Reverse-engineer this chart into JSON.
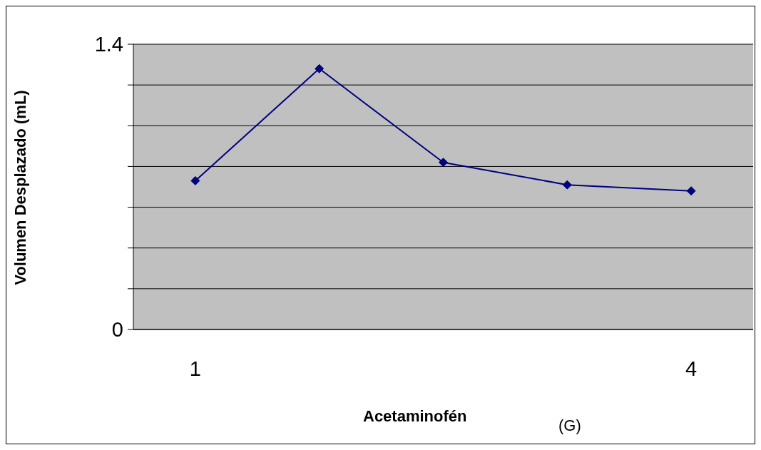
{
  "chart_data": {
    "type": "line",
    "xlabel": "Acetaminofén",
    "ylabel": "Volumen Desplazado (mL)",
    "annotations": [
      "(G)"
    ],
    "categories": [
      "1",
      null,
      null,
      null,
      "4"
    ],
    "series": [
      {
        "color": "#000080",
        "values": [
          0.73,
          1.28,
          0.82,
          0.71,
          0.68
        ]
      }
    ],
    "ylim": [
      0,
      1.4
    ],
    "yticks": [
      0,
      {
        "value": 0.2,
        "label": null
      },
      {
        "value": 0.4,
        "label": null
      },
      {
        "value": 0.6,
        "label": null
      },
      {
        "value": 0.8,
        "label": null
      },
      {
        "value": 1.0,
        "label": null
      },
      {
        "value": 1.2,
        "label": null
      },
      1.4
    ],
    "grid": "y",
    "marker": "diamond",
    "line_style": "solid"
  }
}
